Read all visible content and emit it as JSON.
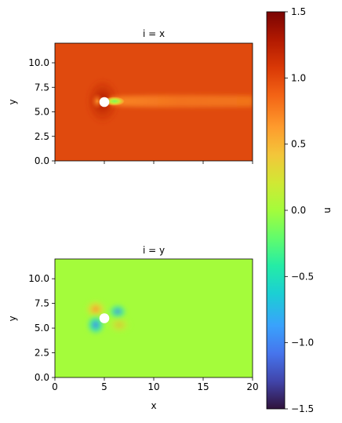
{
  "chart_data": [
    {
      "type": "heatmap",
      "title": "i = x",
      "xlabel": "",
      "ylabel": "y",
      "xlim": [
        0,
        20
      ],
      "ylim": [
        0,
        12
      ],
      "x_ticks": [
        0,
        5,
        10,
        15,
        20
      ],
      "x_tick_labels_shown": false,
      "y_ticks": [
        0.0,
        2.5,
        5.0,
        7.5,
        10.0
      ],
      "y_tick_labels": [
        "0.0",
        "2.5",
        "5.0",
        "7.5",
        "10.0"
      ],
      "background_value": 1.2,
      "obstacle": {
        "shape": "circle",
        "x": 5,
        "y": 6,
        "radius": 0.5
      },
      "field_features": [
        {
          "x": 5,
          "y": 6.9,
          "value": 1.5,
          "note": "fast flow above obstacle"
        },
        {
          "x": 5,
          "y": 5.1,
          "value": 1.5,
          "note": "fast flow below obstacle"
        },
        {
          "x": 6.0,
          "y": 6.0,
          "value": 0.0,
          "note": "low-velocity near wake"
        },
        {
          "x": 15,
          "y": 6.0,
          "value": 0.9,
          "note": "wake extending to outlet"
        }
      ]
    },
    {
      "type": "heatmap",
      "title": "i = y",
      "xlabel": "x",
      "ylabel": "y",
      "xlim": [
        0,
        20
      ],
      "ylim": [
        0,
        12
      ],
      "x_ticks": [
        0,
        5,
        10,
        15,
        20
      ],
      "x_tick_labels": [
        "0",
        "5",
        "10",
        "15",
        "20"
      ],
      "y_ticks": [
        0.0,
        2.5,
        5.0,
        7.5,
        10.0
      ],
      "y_tick_labels": [
        "0.0",
        "2.5",
        "5.0",
        "7.5",
        "10.0"
      ],
      "background_value": 0.12,
      "obstacle": {
        "shape": "circle",
        "x": 5,
        "y": 6,
        "radius": 0.5
      },
      "field_features": [
        {
          "x": 4.3,
          "y": 6.6,
          "value": 0.6,
          "note": "positive lobe upstream-top"
        },
        {
          "x": 4.3,
          "y": 5.4,
          "value": -0.4,
          "note": "negative lobe upstream-bottom"
        },
        {
          "x": 6.2,
          "y": 6.5,
          "value": -0.3,
          "note": "negative lobe downstream-top"
        },
        {
          "x": 6.2,
          "y": 5.5,
          "value": 0.5,
          "note": "positive lobe downstream-bottom"
        }
      ]
    }
  ],
  "colorbar": {
    "label": "u",
    "range": [
      -1.5,
      1.5
    ],
    "colormap": "turbo",
    "ticks": [
      1.5,
      1.0,
      0.5,
      0.0,
      -0.5,
      -1.0,
      -1.5
    ],
    "tick_labels": [
      "1.5",
      "1.0",
      "0.5",
      "0.0",
      "−0.5",
      "−1.0",
      "−1.5"
    ]
  }
}
